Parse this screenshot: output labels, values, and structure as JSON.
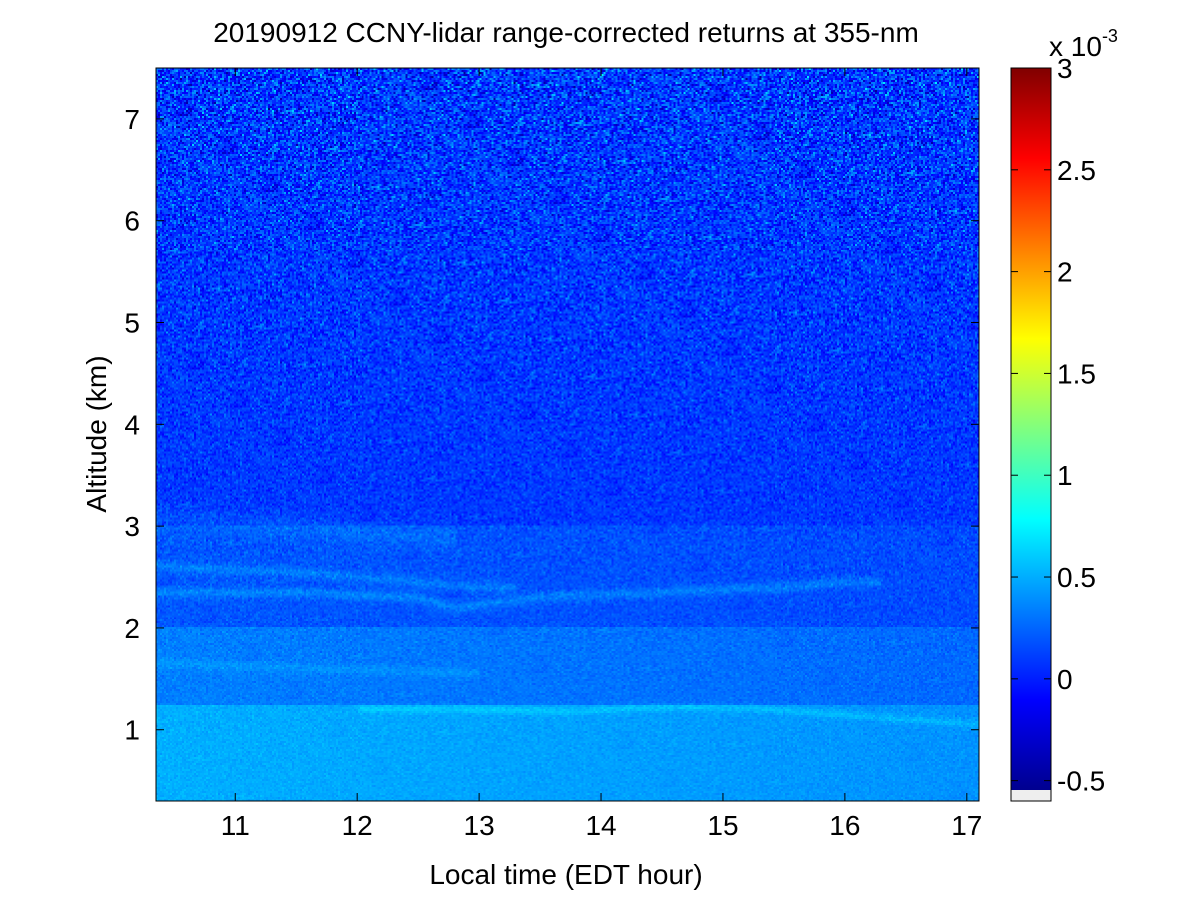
{
  "chart_data": {
    "type": "heatmap",
    "title": "20190912 CCNY-lidar range-corrected returns at 355-nm",
    "xlabel": "Local time (EDT hour)",
    "ylabel": "Altitude (km)",
    "xlim": [
      10.35,
      17.1
    ],
    "ylim": [
      0.3,
      7.5
    ],
    "xticks": [
      11,
      12,
      13,
      14,
      15,
      16,
      17
    ],
    "yticks": [
      1,
      2,
      3,
      4,
      5,
      6,
      7
    ],
    "colorbar": {
      "colormap": "jet",
      "range": [
        -0.6,
        3
      ],
      "ticks": [
        -0.5,
        0,
        0.5,
        1,
        1.5,
        2,
        2.5,
        3
      ],
      "tick_labels": [
        "-0.5",
        "0",
        "0.5",
        "1",
        "1.5",
        "2",
        "2.5",
        "3"
      ],
      "exponent_label": "x 10",
      "exponent_power": "-3",
      "under_color": "#eeeeee"
    },
    "features": [
      {
        "name": "near-surface boundary layer",
        "altitude_range_km": [
          0.3,
          1.2
        ],
        "typical_value": 0.5
      },
      {
        "name": "thin layer",
        "time": [
          12.0,
          17.1
        ],
        "altitude_km": [
          1.2,
          1.2,
          1.18,
          1.22,
          1.2,
          1.12,
          1.05
        ]
      },
      {
        "name": "residual layer",
        "time": [
          10.35,
          13.0
        ],
        "altitude_km": [
          1.65,
          1.6,
          1.55
        ]
      },
      {
        "name": "elevated aerosol layer lower edge",
        "time": [
          10.35,
          11.5,
          12.5,
          12.8,
          13.5,
          14.5,
          15.5,
          16.0
        ],
        "altitude_km": [
          2.35,
          2.35,
          2.3,
          2.2,
          2.3,
          2.35,
          2.4,
          2.45
        ]
      },
      {
        "name": "elevated aerosol layer upper edge",
        "time": [
          10.35,
          11.5,
          12.5,
          13.0
        ],
        "altitude_km": [
          2.6,
          2.55,
          2.45,
          2.4
        ]
      },
      {
        "name": "faint upper layer",
        "time": [
          10.35,
          11.5,
          12.5
        ],
        "altitude_km": [
          3.1,
          3.0,
          2.9
        ]
      },
      {
        "name": "free troposphere noise",
        "altitude_range_km": [
          3.0,
          7.5
        ],
        "typical_value": 0.0,
        "noise_increase_with_altitude": true
      }
    ]
  }
}
